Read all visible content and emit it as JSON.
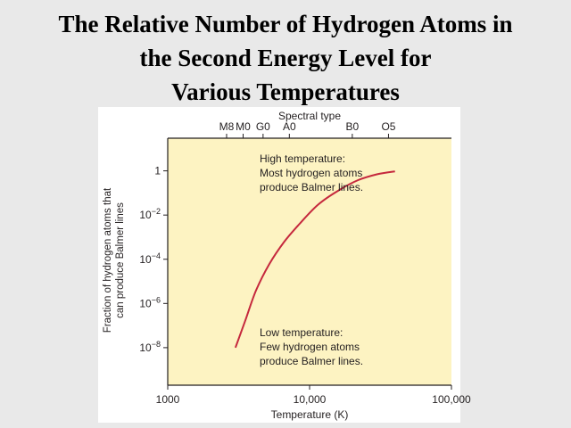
{
  "slide": {
    "title_lines": [
      "The Relative Number  of Hydrogen Atoms in",
      "the Second Energy Level for",
      "Various Temperatures"
    ]
  },
  "colors": {
    "background": "#e9e9e9",
    "plot_fill": "#fdf3c2",
    "curve": "#c5283d",
    "text": "#231f20"
  },
  "chart_data": {
    "type": "line",
    "x_scale": "log",
    "y_scale": "log",
    "xlabel": "Temperature (K)",
    "ylabel_lines": [
      "Fraction of hydrogen atoms that",
      "can produce Balmer lines"
    ],
    "top_axis_label": "Spectral type",
    "xlim": [
      1000,
      100000
    ],
    "x_ticks": [
      {
        "value": 1000,
        "label": "1000"
      },
      {
        "value": 10000,
        "label": "10,000"
      },
      {
        "value": 100000,
        "label": "100,000"
      }
    ],
    "spectral_types": [
      {
        "label": "M8",
        "temperature": 2600
      },
      {
        "label": "M0",
        "temperature": 3400
      },
      {
        "label": "G0",
        "temperature": 4700
      },
      {
        "label": "A0",
        "temperature": 7200
      },
      {
        "label": "B0",
        "temperature": 20000
      },
      {
        "label": "O5",
        "temperature": 36000
      }
    ],
    "y_ticks": [
      {
        "value": 1,
        "base": "1",
        "exp": ""
      },
      {
        "value": 0.01,
        "base": "10",
        "exp": "−2"
      },
      {
        "value": 0.0001,
        "base": "10",
        "exp": "−4"
      },
      {
        "value": 1e-06,
        "base": "10",
        "exp": "−6"
      },
      {
        "value": 1e-08,
        "base": "10",
        "exp": "−8"
      }
    ],
    "ylim": [
      2e-10,
      30
    ],
    "series": [
      {
        "x": [
          3000,
          3500,
          4200,
          5200,
          6600,
          8500,
          11500,
          16000,
          22000,
          30000,
          40000
        ],
        "y": [
          1e-08,
          1.5e-07,
          4e-06,
          6e-05,
          0.0006,
          0.004,
          0.03,
          0.13,
          0.38,
          0.7,
          0.95
        ]
      }
    ],
    "annotations": [
      {
        "id": "high",
        "lines": [
          "High temperature:",
          "Most hydrogen atoms",
          "produce Balmer lines."
        ]
      },
      {
        "id": "low",
        "lines": [
          "Low temperature:",
          "Few hydrogen atoms",
          "produce Balmer lines."
        ]
      }
    ]
  }
}
